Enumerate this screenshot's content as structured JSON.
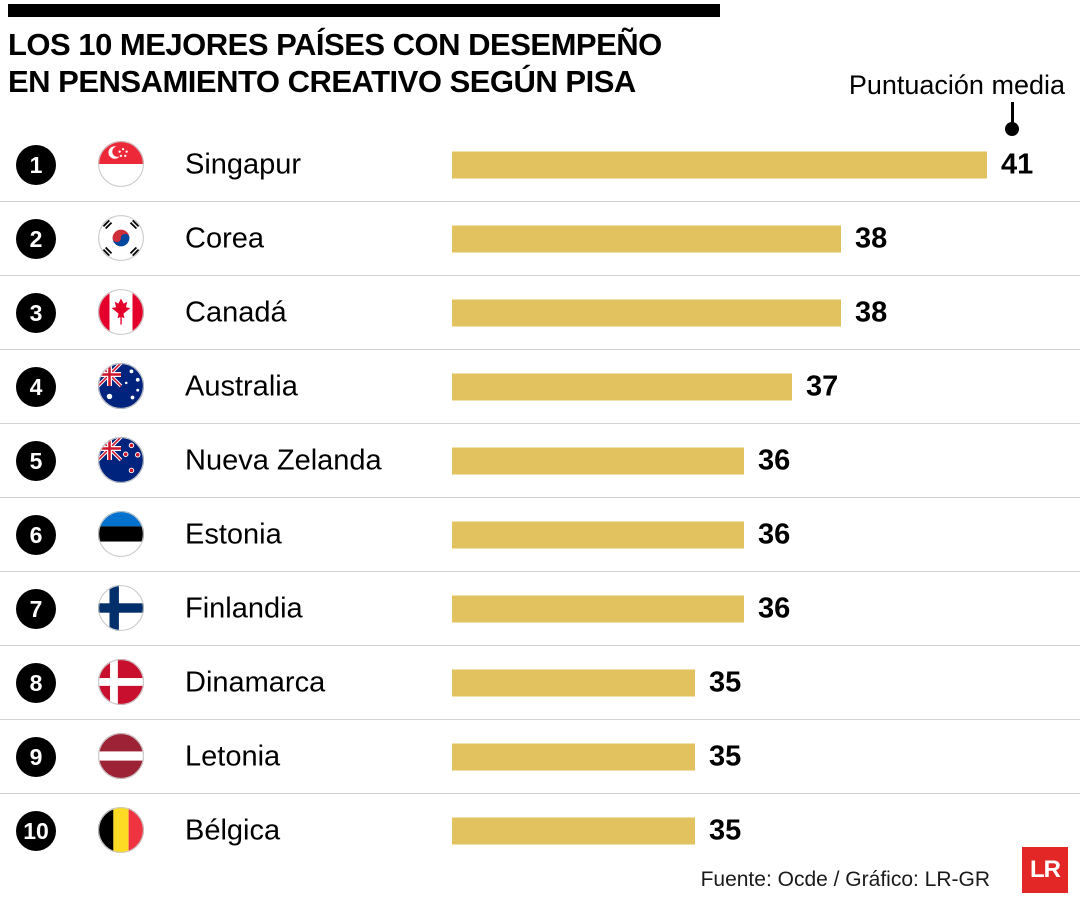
{
  "header": {
    "title_line1": "LOS 10 MEJORES PAÍSES CON DESEMPEÑO",
    "title_line2": "EN PENSAMIENTO CREATIVO SEGÚN PISA",
    "annotation_label": "Puntuación media"
  },
  "chart_data": {
    "type": "bar",
    "orientation": "horizontal",
    "title": "LOS 10 MEJORES PAÍSES CON DESEMPEÑO EN PENSAMIENTO CREATIVO SEGÚN PISA",
    "value_label": "Puntuación media",
    "categories": [
      "Singapur",
      "Corea",
      "Canadá",
      "Australia",
      "Nueva Zelanda",
      "Estonia",
      "Finlandia",
      "Dinamarca",
      "Letonia",
      "Bélgica"
    ],
    "ranks": [
      "1",
      "2",
      "3",
      "4",
      "5",
      "6",
      "7",
      "8",
      "9",
      "10"
    ],
    "values": [
      41,
      38,
      38,
      37,
      36,
      36,
      36,
      35,
      35,
      35
    ],
    "flags": [
      "singapore",
      "south-korea",
      "canada",
      "australia",
      "new-zealand",
      "estonia",
      "finland",
      "denmark",
      "latvia",
      "belgium"
    ],
    "xlim": [
      30,
      41
    ],
    "bar_color": "#E2C25E",
    "grid": false,
    "legend": "none"
  },
  "footer": {
    "source": "Fuente: Ocde / Gráfico: LR-GR",
    "logo_text": "LR"
  }
}
